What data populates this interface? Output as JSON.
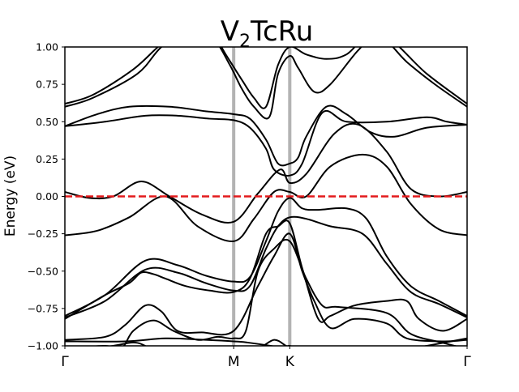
{
  "chart_data": {
    "type": "line",
    "title_main": "V",
    "title_sub": "2",
    "title_rest": "TcRu",
    "ylabel": "Energy (eV)",
    "xlabel": "",
    "ylim": [
      -1.0,
      1.0
    ],
    "xlim": [
      0,
      1
    ],
    "grid": false,
    "legend": "none",
    "yticks": [
      -1.0,
      -0.75,
      -0.5,
      -0.25,
      0.0,
      0.25,
      0.5,
      0.75,
      1.0
    ],
    "ytick_labels": [
      "−1.00",
      "−0.75",
      "−0.50",
      "−0.25",
      "0.00",
      "0.25",
      "0.50",
      "0.75",
      "1.00"
    ],
    "kpoints": [
      {
        "label": "Γ",
        "x": 0.0
      },
      {
        "label": "M",
        "x": 0.4197
      },
      {
        "label": "K",
        "x": 0.5591
      },
      {
        "label": "Γ",
        "x": 1.0
      }
    ],
    "fermi_level": 0.0,
    "colors": {
      "bands": "#000000",
      "fermi": "#e31a1c",
      "kpath_lines": "#b3b3b3"
    },
    "series": [
      {
        "values": [
          [
            0.0,
            0.62
          ],
          [
            0.07,
            0.68
          ],
          [
            0.17,
            0.85
          ],
          [
            0.24,
            1.02
          ],
          [
            0.31,
            1.15
          ],
          [
            0.36,
            1.12
          ],
          [
            0.4,
            0.95
          ],
          [
            0.44,
            0.78
          ],
          [
            0.47,
            0.66
          ],
          [
            0.5,
            0.6
          ],
          [
            0.53,
            0.88
          ],
          [
            0.5591,
            1.0
          ],
          [
            0.6,
            0.95
          ],
          [
            0.65,
            0.92
          ],
          [
            0.7,
            0.95
          ],
          [
            0.78,
            1.1
          ],
          [
            0.9,
            0.82
          ],
          [
            1.0,
            0.62
          ]
        ]
      },
      {
        "values": [
          [
            0.0,
            0.6
          ],
          [
            0.07,
            0.66
          ],
          [
            0.18,
            0.82
          ],
          [
            0.24,
            1.0
          ],
          [
            0.31,
            1.12
          ],
          [
            0.37,
            1.05
          ],
          [
            0.41,
            0.88
          ],
          [
            0.44,
            0.72
          ],
          [
            0.47,
            0.6
          ],
          [
            0.508,
            0.53
          ],
          [
            0.53,
            0.82
          ],
          [
            0.5591,
            0.94
          ],
          [
            0.58,
            0.86
          ],
          [
            0.62,
            0.7
          ],
          [
            0.66,
            0.75
          ],
          [
            0.73,
            0.98
          ],
          [
            0.78,
            1.08
          ],
          [
            0.85,
            0.9
          ],
          [
            0.92,
            0.75
          ],
          [
            1.0,
            0.6
          ]
        ]
      },
      {
        "values": [
          [
            0.0,
            0.47
          ],
          [
            0.08,
            0.55
          ],
          [
            0.16,
            0.6
          ],
          [
            0.26,
            0.6
          ],
          [
            0.35,
            0.57
          ],
          [
            0.4197,
            0.55
          ],
          [
            0.46,
            0.52
          ],
          [
            0.5,
            0.38
          ],
          [
            0.53,
            0.22
          ],
          [
            0.5591,
            0.22
          ],
          [
            0.58,
            0.26
          ],
          [
            0.6,
            0.4
          ],
          [
            0.65,
            0.6
          ],
          [
            0.7,
            0.55
          ],
          [
            0.76,
            0.43
          ],
          [
            0.82,
            0.4
          ],
          [
            0.9,
            0.46
          ],
          [
            1.0,
            0.48
          ]
        ]
      },
      {
        "values": [
          [
            0.0,
            0.47
          ],
          [
            0.1,
            0.5
          ],
          [
            0.2,
            0.54
          ],
          [
            0.28,
            0.54
          ],
          [
            0.36,
            0.52
          ],
          [
            0.4197,
            0.51
          ],
          [
            0.46,
            0.46
          ],
          [
            0.5,
            0.32
          ],
          [
            0.52,
            0.18
          ],
          [
            0.5591,
            0.14
          ],
          [
            0.59,
            0.22
          ],
          [
            0.64,
            0.56
          ],
          [
            0.7,
            0.5
          ],
          [
            0.8,
            0.5
          ],
          [
            0.9,
            0.53
          ],
          [
            0.95,
            0.5
          ],
          [
            1.0,
            0.48
          ]
        ]
      },
      {
        "values": [
          [
            0.0,
            0.03
          ],
          [
            0.06,
            -0.01
          ],
          [
            0.12,
            0.0
          ],
          [
            0.19,
            0.1
          ],
          [
            0.26,
            0.0
          ],
          [
            0.34,
            -0.12
          ],
          [
            0.4197,
            -0.17
          ],
          [
            0.48,
            0.02
          ],
          [
            0.535,
            0.18
          ],
          [
            0.5591,
            0.09
          ],
          [
            0.6,
            0.15
          ],
          [
            0.67,
            0.42
          ],
          [
            0.73,
            0.48
          ],
          [
            0.8,
            0.3
          ],
          [
            0.86,
            0.05
          ],
          [
            0.93,
            0.0
          ],
          [
            1.0,
            0.03
          ]
        ]
      },
      {
        "values": [
          [
            0.0,
            -0.26
          ],
          [
            0.08,
            -0.23
          ],
          [
            0.16,
            -0.14
          ],
          [
            0.25,
            0.0
          ],
          [
            0.33,
            -0.2
          ],
          [
            0.4197,
            -0.3
          ],
          [
            0.47,
            -0.15
          ],
          [
            0.52,
            0.03
          ],
          [
            0.5591,
            0.03
          ],
          [
            0.6,
            0.0
          ],
          [
            0.66,
            0.2
          ],
          [
            0.74,
            0.28
          ],
          [
            0.8,
            0.2
          ],
          [
            0.86,
            -0.05
          ],
          [
            0.93,
            -0.22
          ],
          [
            1.0,
            -0.26
          ]
        ]
      },
      {
        "values": [
          [
            0.0,
            -0.8
          ],
          [
            0.1,
            -0.66
          ],
          [
            0.2,
            -0.43
          ],
          [
            0.28,
            -0.46
          ],
          [
            0.35,
            -0.53
          ],
          [
            0.4197,
            -0.57
          ],
          [
            0.46,
            -0.54
          ],
          [
            0.5,
            -0.3
          ],
          [
            0.53,
            -0.1
          ],
          [
            0.5591,
            -0.01
          ],
          [
            0.59,
            -0.08
          ],
          [
            0.63,
            -0.09
          ],
          [
            0.7,
            -0.08
          ],
          [
            0.75,
            -0.15
          ],
          [
            0.8,
            -0.4
          ],
          [
            0.86,
            -0.6
          ],
          [
            0.93,
            -0.7
          ],
          [
            1.0,
            -0.8
          ]
        ]
      },
      {
        "values": [
          [
            0.0,
            -0.81
          ],
          [
            0.1,
            -0.7
          ],
          [
            0.2,
            -0.49
          ],
          [
            0.28,
            -0.51
          ],
          [
            0.35,
            -0.58
          ],
          [
            0.4197,
            -0.63
          ],
          [
            0.46,
            -0.6
          ],
          [
            0.5,
            -0.35
          ],
          [
            0.53,
            -0.2
          ],
          [
            0.5591,
            -0.14
          ],
          [
            0.6,
            -0.15
          ],
          [
            0.66,
            -0.2
          ],
          [
            0.74,
            -0.25
          ],
          [
            0.8,
            -0.45
          ],
          [
            0.86,
            -0.64
          ],
          [
            0.93,
            -0.72
          ],
          [
            1.0,
            -0.81
          ]
        ]
      },
      {
        "values": [
          [
            0.0,
            -0.82
          ],
          [
            0.1,
            -0.66
          ],
          [
            0.16,
            -0.58
          ],
          [
            0.19,
            -0.51
          ],
          [
            0.22,
            -0.52
          ],
          [
            0.25,
            -0.55
          ],
          [
            0.3,
            -0.6
          ],
          [
            0.36,
            -0.63
          ],
          [
            0.42,
            -0.64
          ],
          [
            0.46,
            -0.55
          ],
          [
            0.5,
            -0.25
          ],
          [
            0.53,
            -0.2
          ],
          [
            0.5591,
            -0.18
          ],
          [
            0.59,
            -0.48
          ],
          [
            0.63,
            -0.82
          ],
          [
            0.66,
            -0.8
          ],
          [
            0.72,
            -0.73
          ],
          [
            0.8,
            -0.7
          ],
          [
            0.85,
            -0.7
          ],
          [
            0.88,
            -0.82
          ],
          [
            0.94,
            -0.9
          ],
          [
            1.0,
            -0.82
          ]
        ]
      },
      {
        "values": [
          [
            0.0,
            -0.96
          ],
          [
            0.1,
            -0.94
          ],
          [
            0.15,
            -0.86
          ],
          [
            0.2,
            -0.73
          ],
          [
            0.24,
            -0.77
          ],
          [
            0.28,
            -0.9
          ],
          [
            0.34,
            -0.91
          ],
          [
            0.4197,
            -0.9
          ],
          [
            0.48,
            -0.6
          ],
          [
            0.52,
            -0.4
          ],
          [
            0.5591,
            -0.25
          ],
          [
            0.59,
            -0.5
          ],
          [
            0.62,
            -0.7
          ],
          [
            0.66,
            -0.88
          ],
          [
            0.72,
            -0.82
          ],
          [
            0.8,
            -0.85
          ],
          [
            0.85,
            -0.95
          ],
          [
            0.94,
            -0.97
          ],
          [
            1.0,
            -0.96
          ]
        ]
      },
      {
        "values": [
          [
            0.0,
            -1.02
          ],
          [
            0.1,
            -1.0
          ],
          [
            0.14,
            -1.02
          ],
          [
            0.17,
            -0.9
          ],
          [
            0.22,
            -0.83
          ],
          [
            0.27,
            -0.9
          ],
          [
            0.33,
            -0.96
          ],
          [
            0.38,
            -0.94
          ],
          [
            0.4197,
            -0.95
          ],
          [
            0.45,
            -0.9
          ],
          [
            0.48,
            -0.5
          ],
          [
            0.52,
            -0.35
          ],
          [
            0.5591,
            -0.3
          ],
          [
            0.6,
            -0.55
          ],
          [
            0.64,
            -0.73
          ],
          [
            0.68,
            -0.74
          ],
          [
            0.8,
            -0.78
          ],
          [
            0.86,
            -0.92
          ],
          [
            0.94,
            -0.98
          ],
          [
            1.0,
            -1.02
          ]
        ]
      },
      {
        "values": [
          [
            0.0,
            -0.97
          ],
          [
            0.15,
            -0.97
          ],
          [
            0.25,
            -0.95
          ],
          [
            0.35,
            -0.96
          ],
          [
            0.4197,
            -0.97
          ],
          [
            0.46,
            -0.98
          ],
          [
            0.5591,
            -1.02
          ],
          [
            0.62,
            -1.05
          ],
          [
            0.72,
            -1.06
          ],
          [
            0.82,
            -1.04
          ],
          [
            0.9,
            -1.0
          ],
          [
            0.96,
            -0.97
          ],
          [
            1.0,
            -0.95
          ]
        ]
      },
      {
        "values": [
          [
            0.0,
            -1.05
          ],
          [
            0.12,
            -1.0
          ],
          [
            0.18,
            -0.98
          ],
          [
            0.24,
            -1.05
          ],
          [
            0.34,
            -1.08
          ],
          [
            0.42,
            -1.06
          ],
          [
            0.48,
            -1.02
          ],
          [
            0.52,
            -0.96
          ],
          [
            0.55,
            -1.0
          ],
          [
            0.5591,
            -1.0
          ],
          [
            0.58,
            -1.02
          ],
          [
            0.66,
            -1.08
          ],
          [
            0.8,
            -1.08
          ],
          [
            0.95,
            -1.03
          ],
          [
            1.0,
            -1.05
          ]
        ]
      }
    ]
  }
}
